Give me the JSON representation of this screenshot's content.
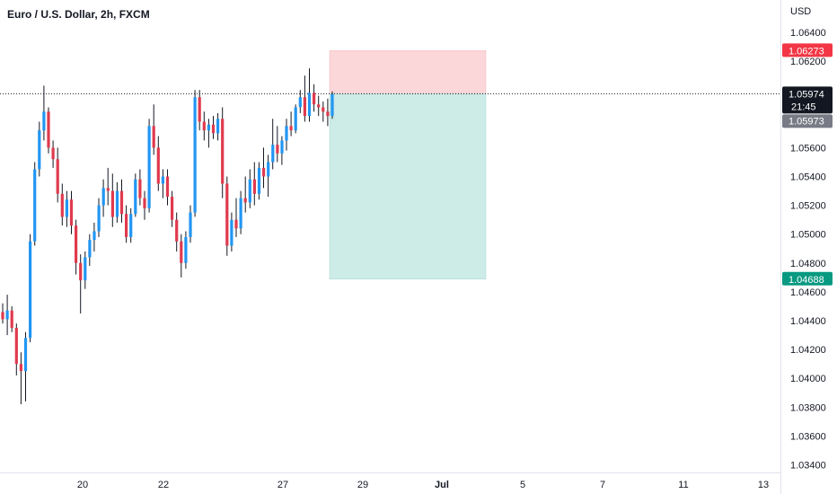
{
  "header": {
    "symbol": "Euro / U.S. Dollar",
    "interval": "2h",
    "exchange": "FXCM"
  },
  "colors": {
    "bull": "#2196f3",
    "bear": "#e03a4e",
    "wick": "#131722",
    "stop_zone": "#fcd7d9",
    "target_zone": "#cdebe7",
    "stop_tag": "#f23645",
    "target_tag": "#089981",
    "price_tag": "#131722",
    "prev_tag": "#787b86",
    "grid": "#e0e3eb"
  },
  "chart_data": {
    "type": "candlestick",
    "currency": "USD",
    "y_ticks": [
      "1.06400",
      "1.06200",
      "1.05600",
      "1.05400",
      "1.05200",
      "1.05000",
      "1.04800",
      "1.04600",
      "1.04400",
      "1.04200",
      "1.04000",
      "1.03800",
      "1.03600",
      "1.03400"
    ],
    "y_range": [
      1.033,
      1.068
    ],
    "x_ticks": [
      "20",
      "22",
      "27",
      "29",
      "Jul",
      "5",
      "7",
      "11",
      "13"
    ],
    "position": {
      "entry": 1.05974,
      "stop": 1.06273,
      "target": 1.04688,
      "stop_label": "1.06273",
      "target_label": "1.04688"
    },
    "last_price": {
      "label": "1.05974",
      "countdown": "21:45"
    },
    "prev_price": {
      "label": "1.05973"
    },
    "candles": [
      [
        1.0446,
        1.0452,
        1.0438,
        1.0441
      ],
      [
        1.0441,
        1.0458,
        1.043,
        1.0447
      ],
      [
        1.0447,
        1.045,
        1.0432,
        1.0435
      ],
      [
        1.0435,
        1.0438,
        1.0402,
        1.041
      ],
      [
        1.041,
        1.0418,
        1.0382,
        1.0405
      ],
      [
        1.0405,
        1.0432,
        1.0384,
        1.0428
      ],
      [
        1.0428,
        1.05,
        1.0425,
        1.0495
      ],
      [
        1.0495,
        1.055,
        1.0492,
        1.0545
      ],
      [
        1.0545,
        1.0578,
        1.054,
        1.0572
      ],
      [
        1.0572,
        1.0603,
        1.0565,
        1.0585
      ],
      [
        1.0585,
        1.0588,
        1.0556,
        1.056
      ],
      [
        1.056,
        1.0565,
        1.0546,
        1.0552
      ],
      [
        1.0552,
        1.056,
        1.0522,
        1.0528
      ],
      [
        1.0528,
        1.0535,
        1.0506,
        1.0512
      ],
      [
        1.0512,
        1.053,
        1.0505,
        1.0524
      ],
      [
        1.0524,
        1.053,
        1.05,
        1.0506
      ],
      [
        1.0506,
        1.051,
        1.0472,
        1.048
      ],
      [
        1.048,
        1.0486,
        1.0445,
        1.0468
      ],
      [
        1.0468,
        1.0488,
        1.0462,
        1.0484
      ],
      [
        1.0484,
        1.05,
        1.0478,
        1.0496
      ],
      [
        1.0496,
        1.0508,
        1.0488,
        1.0502
      ],
      [
        1.0502,
        1.0525,
        1.0498,
        1.052
      ],
      [
        1.052,
        1.0538,
        1.0512,
        1.0532
      ],
      [
        1.0532,
        1.0546,
        1.052,
        1.053
      ],
      [
        1.053,
        1.0542,
        1.0505,
        1.0512
      ],
      [
        1.0512,
        1.0536,
        1.0508,
        1.053
      ],
      [
        1.053,
        1.0538,
        1.0508,
        1.0514
      ],
      [
        1.0514,
        1.052,
        1.0494,
        1.0498
      ],
      [
        1.0498,
        1.0518,
        1.0494,
        1.0514
      ],
      [
        1.0514,
        1.0542,
        1.0512,
        1.0538
      ],
      [
        1.0538,
        1.0545,
        1.052,
        1.0525
      ],
      [
        1.0525,
        1.053,
        1.051,
        1.0518
      ],
      [
        1.0518,
        1.058,
        1.0515,
        1.0575
      ],
      [
        1.0575,
        1.059,
        1.0555,
        1.056
      ],
      [
        1.056,
        1.0568,
        1.053,
        1.0535
      ],
      [
        1.0535,
        1.0545,
        1.0525,
        1.054
      ],
      [
        1.054,
        1.0545,
        1.052,
        1.0526
      ],
      [
        1.0526,
        1.053,
        1.0505,
        1.051
      ],
      [
        1.051,
        1.0515,
        1.0488,
        1.0495
      ],
      [
        1.0495,
        1.05,
        1.047,
        1.048
      ],
      [
        1.048,
        1.0502,
        1.0476,
        1.0498
      ],
      [
        1.0498,
        1.052,
        1.0494,
        1.0515
      ],
      [
        1.0515,
        1.06,
        1.0512,
        1.0595
      ],
      [
        1.0595,
        1.06,
        1.0572,
        1.0578
      ],
      [
        1.0578,
        1.0585,
        1.0565,
        1.0572
      ],
      [
        1.0572,
        1.058,
        1.056,
        1.0576
      ],
      [
        1.0576,
        1.0582,
        1.0566,
        1.057
      ],
      [
        1.057,
        1.0584,
        1.0565,
        1.058
      ],
      [
        1.058,
        1.0588,
        1.0525,
        1.0535
      ],
      [
        1.0535,
        1.054,
        1.0485,
        1.0492
      ],
      [
        1.0492,
        1.0515,
        1.0488,
        1.051
      ],
      [
        1.051,
        1.0525,
        1.0498,
        1.0504
      ],
      [
        1.0504,
        1.053,
        1.05,
        1.0525
      ],
      [
        1.0525,
        1.054,
        1.0515,
        1.0522
      ],
      [
        1.0522,
        1.0545,
        1.0518,
        1.0538
      ],
      [
        1.0538,
        1.055,
        1.052,
        1.0528
      ],
      [
        1.0528,
        1.055,
        1.0524,
        1.0546
      ],
      [
        1.0546,
        1.056,
        1.0532,
        1.054
      ],
      [
        1.054,
        1.0555,
        1.0526,
        1.055
      ],
      [
        1.055,
        1.058,
        1.0545,
        1.0562
      ],
      [
        1.0562,
        1.0575,
        1.055,
        1.0556
      ],
      [
        1.0556,
        1.0568,
        1.0548,
        1.0565
      ],
      [
        1.0565,
        1.058,
        1.0558,
        1.0575
      ],
      [
        1.0575,
        1.0585,
        1.0568,
        1.0572
      ],
      [
        1.0572,
        1.059,
        1.057,
        1.0588
      ],
      [
        1.0588,
        1.06,
        1.0584,
        1.0595
      ],
      [
        1.0595,
        1.061,
        1.0578,
        1.0582
      ],
      [
        1.0582,
        1.0615,
        1.0578,
        1.0598
      ],
      [
        1.0598,
        1.0604,
        1.0585,
        1.059
      ],
      [
        1.059,
        1.0596,
        1.0582,
        1.0588
      ],
      [
        1.0588,
        1.0592,
        1.0578,
        1.0585
      ],
      [
        1.0585,
        1.0594,
        1.0575,
        1.0582
      ],
      [
        1.0582,
        1.0599,
        1.058,
        1.0597
      ]
    ]
  }
}
